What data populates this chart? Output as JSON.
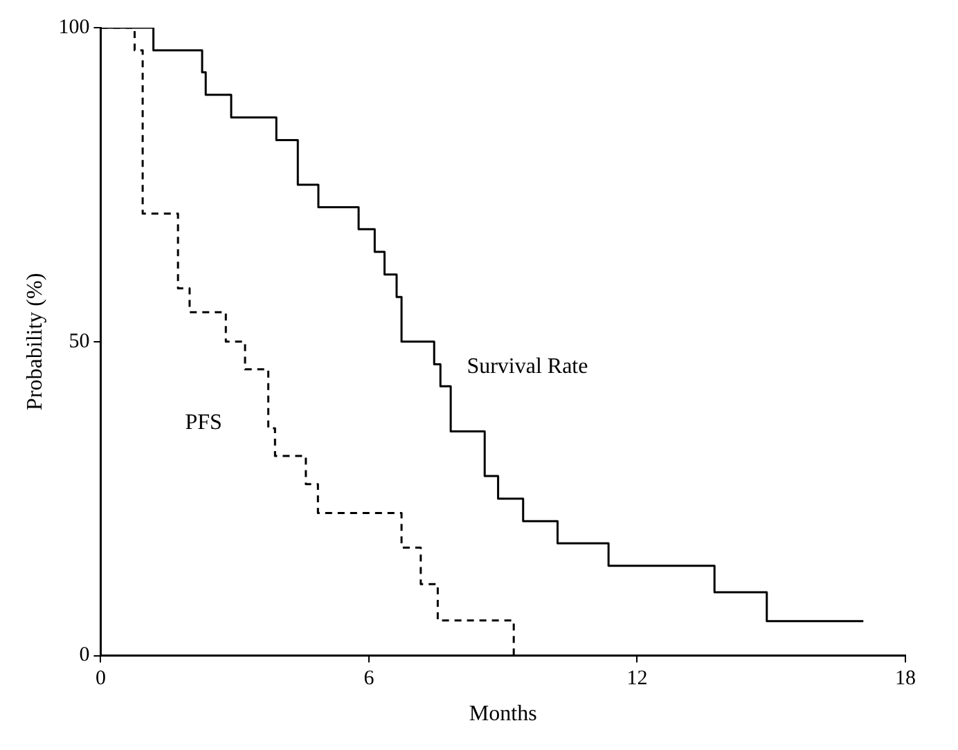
{
  "chart_data": {
    "type": "step",
    "xlabel": "Months",
    "ylabel": "Probability (%)",
    "xlim": [
      0,
      18
    ],
    "xticks": [
      0,
      6,
      12,
      18
    ],
    "ylim": [
      0,
      100
    ],
    "yticks": [
      0,
      50,
      100
    ],
    "grid": false,
    "legend": false,
    "marker": "none",
    "series": [
      {
        "name": "Survival Rate",
        "color": "#000000",
        "line_style": "solid",
        "x": [
          0,
          1.18,
          2.27,
          2.35,
          2.92,
          3.93,
          4.41,
          4.87,
          5.77,
          6.13,
          6.35,
          6.62,
          6.73,
          7.46,
          7.6,
          7.83,
          8.59,
          8.89,
          9.45,
          10.22,
          11.36,
          13.73,
          14.9,
          17.06
        ],
        "values": [
          100,
          96.4,
          92.9,
          89.3,
          85.7,
          82.1,
          75.0,
          71.4,
          67.9,
          64.3,
          60.7,
          57.1,
          50.0,
          46.4,
          42.9,
          35.7,
          28.6,
          25.0,
          21.4,
          17.9,
          14.3,
          10.1,
          5.5,
          5.5
        ]
      },
      {
        "name": "PFS",
        "color": "#000000",
        "line_style": "dashed",
        "x": [
          0,
          0.76,
          0.94,
          1.73,
          1.99,
          2.8,
          3.23,
          3.75,
          3.9,
          4.59,
          4.86,
          6.73,
          7.16,
          7.54,
          9.24
        ],
        "values": [
          100,
          96.4,
          70.4,
          58.5,
          54.7,
          50.0,
          45.6,
          36.2,
          31.8,
          27.3,
          22.7,
          17.2,
          11.4,
          5.6,
          0
        ]
      }
    ]
  }
}
